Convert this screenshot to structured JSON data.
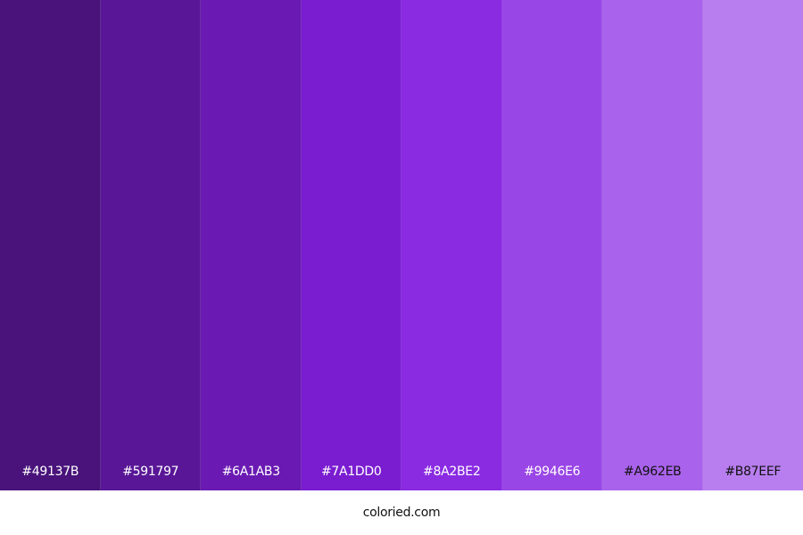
{
  "palette": {
    "colors": [
      {
        "hex": "#49137B",
        "label": "#49137B",
        "text_color": "#ffffff"
      },
      {
        "hex": "#591797",
        "label": "#591797",
        "text_color": "#ffffff"
      },
      {
        "hex": "#6A1AB3",
        "label": "#6A1AB3",
        "text_color": "#ffffff"
      },
      {
        "hex": "#7A1DD0",
        "label": "#7A1DD0",
        "text_color": "#ffffff"
      },
      {
        "hex": "#8A2BE2",
        "label": "#8A2BE2",
        "text_color": "#ffffff"
      },
      {
        "hex": "#9946E6",
        "label": "#9946E6",
        "text_color": "#ffffff"
      },
      {
        "hex": "#A962EB",
        "label": "#A962EB",
        "text_color": "#111111"
      },
      {
        "hex": "#B87EEF",
        "label": "#B87EEF",
        "text_color": "#111111"
      }
    ]
  },
  "footer": {
    "site": "coloried.com"
  }
}
